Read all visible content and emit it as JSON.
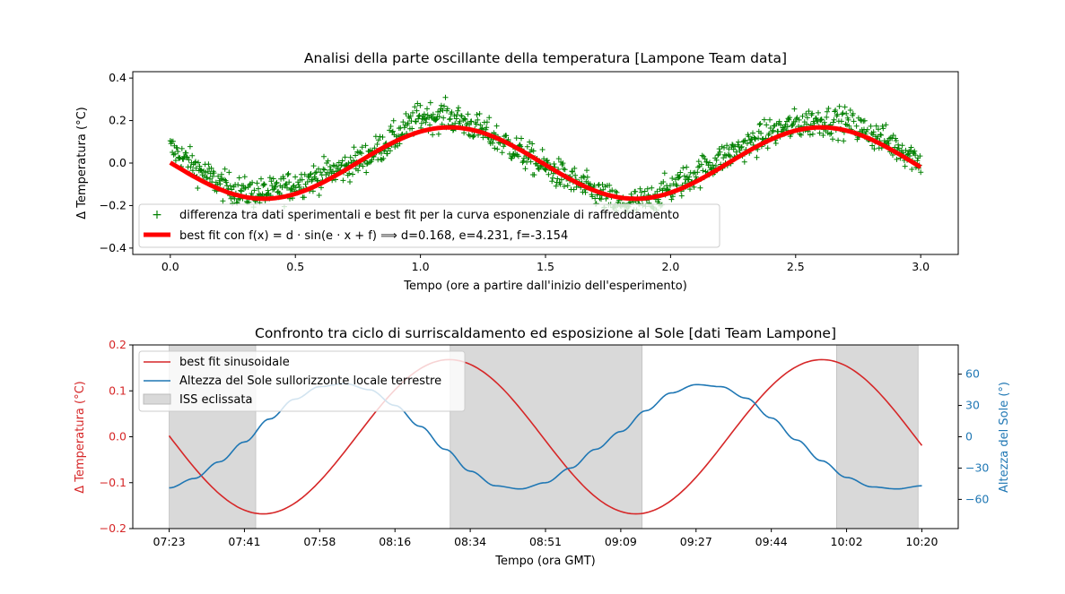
{
  "chart_data": [
    {
      "type": "scatter",
      "title": "Analisi della parte oscillante della temperatura [Lampone Team data]",
      "xlabel": "Tempo (ore a partire dall'inizio dell'esperimento)",
      "ylabel": "Δ Temperatura (°C)",
      "xlim": [
        -0.15,
        3.15
      ],
      "ylim": [
        -0.43,
        0.43
      ],
      "x_ticks": [
        "0.0",
        "0.5",
        "1.0",
        "1.5",
        "2.0",
        "2.5",
        "3.0"
      ],
      "y_ticks": [
        "0.4",
        "0.2",
        "0.0",
        "−0.2",
        "−0.4"
      ],
      "grid": false,
      "legend_position": "lower-left",
      "series": [
        {
          "name": "differenza tra dati sperimentali e best fit per la curva esponenziale di raffreddamento",
          "kind": "scatter-plus",
          "color": "#008000",
          "x": [
            0.0,
            0.1,
            0.2,
            0.3,
            0.4,
            0.5,
            0.6,
            0.7,
            0.8,
            0.9,
            1.0,
            1.1,
            1.2,
            1.3,
            1.4,
            1.5,
            1.6,
            1.7,
            1.8,
            1.9,
            2.0,
            2.1,
            2.2,
            2.3,
            2.4,
            2.5,
            2.6,
            2.7,
            2.8,
            2.9,
            3.0
          ],
          "y": [
            0.07,
            -0.02,
            -0.1,
            -0.14,
            -0.14,
            -0.1,
            -0.06,
            -0.02,
            0.04,
            0.12,
            0.22,
            0.22,
            0.18,
            0.12,
            0.05,
            -0.02,
            -0.08,
            -0.14,
            -0.2,
            -0.18,
            -0.12,
            -0.05,
            0.02,
            0.08,
            0.14,
            0.18,
            0.2,
            0.19,
            0.14,
            0.08,
            0.01
          ]
        },
        {
          "name": "best fit con f(x) = d · sin(e · x + f) ⟹ d=0.168, e=4.231, f=-3.154",
          "kind": "line",
          "color": "#ff0000",
          "d": 0.168,
          "e": 4.231,
          "f": -3.154
        }
      ],
      "legend": [
        "differenza tra dati sperimentali e best fit per la curva esponenziale di raffreddamento",
        "best fit con f(x) = d · sin(e · x + f)  ⟹  d=0.168, e=4.231, f=-3.154"
      ]
    },
    {
      "type": "line",
      "title": "Confronto tra ciclo di surriscaldamento ed esposizione al Sole [dati Team Lampone]",
      "xlabel": "Tempo (ora GMT)",
      "ylabel": "Δ Temperatura (°C)",
      "ylabel_right": "Altezza del Sole (°)",
      "x_ticks": [
        "07:23",
        "07:41",
        "07:58",
        "08:16",
        "08:34",
        "08:51",
        "09:09",
        "09:27",
        "09:44",
        "10:02",
        "10:20"
      ],
      "y_ticks": [
        "0.2",
        "0.1",
        "0.0",
        "−0.1",
        "−0.2"
      ],
      "y_ticks_right": [
        "60",
        "30",
        "0",
        "−30",
        "−60"
      ],
      "ylim": [
        -0.2,
        0.2
      ],
      "ylim_right": [
        -88,
        88
      ],
      "legend_position": "top-left",
      "legend": [
        "best fit sinusoidale",
        "Altezza del Sole sullorizzonte locale terrestre",
        "ISS eclissata"
      ],
      "colors": {
        "fit": "#d62728",
        "sun": "#1f77b4",
        "eclipse": "#d9d9d9"
      },
      "series": [
        {
          "name": "best fit sinusoidale",
          "d": 0.168,
          "e": 4.231,
          "f": -3.154,
          "x_hours": [
            0,
            3
          ]
        },
        {
          "name": "Altezza del Sole sullorizzonte locale terrestre",
          "x_hours": [
            0.0,
            0.1,
            0.2,
            0.3,
            0.4,
            0.5,
            0.6,
            0.7,
            0.8,
            0.9,
            1.0,
            1.1,
            1.2,
            1.3,
            1.4,
            1.5,
            1.6,
            1.7,
            1.8,
            1.9,
            2.0,
            2.1,
            2.2,
            2.3,
            2.4,
            2.5,
            2.6,
            2.7,
            2.8,
            2.9,
            3.0
          ],
          "values": [
            -49,
            -40,
            -24,
            -5,
            17,
            36,
            48,
            51,
            45,
            30,
            10,
            -12,
            -33,
            -47,
            -50,
            -44,
            -30,
            -12,
            5,
            25,
            42,
            50,
            48,
            37,
            18,
            -3,
            -23,
            -39,
            -48,
            -50,
            -47
          ]
        }
      ],
      "eclipse_ranges_hours": [
        [
          0.0,
          0.345
        ],
        [
          1.12,
          1.885
        ],
        [
          2.66,
          2.985
        ]
      ]
    }
  ]
}
